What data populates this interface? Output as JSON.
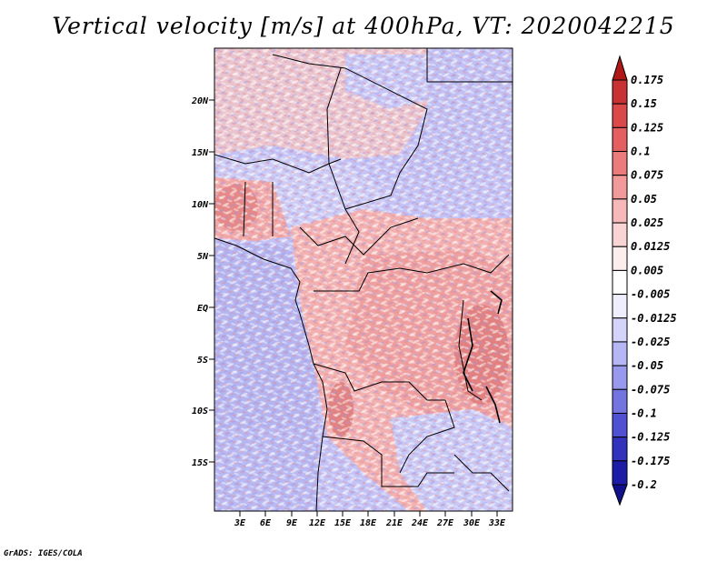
{
  "title": "Vertical velocity [m/s] at 400hPa, VT: 2020042215",
  "credit": "GrADS: IGES/COLA",
  "map": {
    "lat_labels": [
      "20N",
      "15N",
      "10N",
      "5N",
      "EQ",
      "5S",
      "10S",
      "15S"
    ],
    "lon_labels": [
      "3E",
      "6E",
      "9E",
      "12E",
      "15E",
      "18E",
      "21E",
      "24E",
      "27E",
      "30E",
      "33E"
    ]
  },
  "colorbar": {
    "labels": [
      "0.175",
      "0.15",
      "0.125",
      "0.1",
      "0.075",
      "0.05",
      "0.025",
      "0.0125",
      "0.005",
      "-0.005",
      "-0.0125",
      "-0.025",
      "-0.05",
      "-0.075",
      "-0.1",
      "-0.125",
      "-0.175",
      "-0.2"
    ],
    "colors": [
      "#b01818",
      "#c83232",
      "#da4848",
      "#e46060",
      "#ec7c7c",
      "#f29a9a",
      "#f6b8b8",
      "#fad4d4",
      "#fdeeee",
      "#ffffff",
      "#eeeefd",
      "#d4d4fa",
      "#b6b6f4",
      "#9898ec",
      "#7474e0",
      "#5050d2",
      "#3232bc",
      "#1c1ca6",
      "#10108a"
    ]
  }
}
